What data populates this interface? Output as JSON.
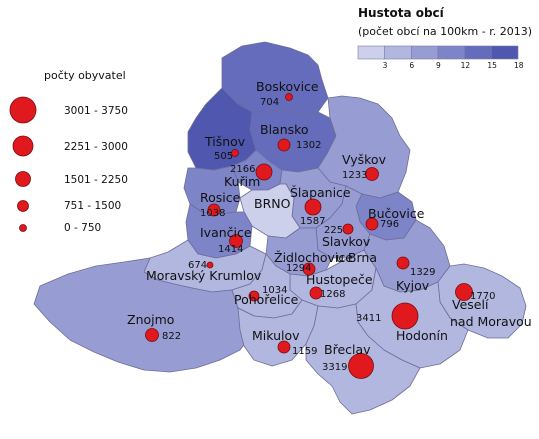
{
  "scale": {
    "title": "Hustota obcí",
    "subtitle": "(počet obcí na 100km - r. 2013)",
    "ticks": [
      "3",
      "6",
      "9",
      "12",
      "15",
      "18"
    ],
    "colors": [
      "#cdd0ea",
      "#b2b7df",
      "#979dd3",
      "#7d84c7",
      "#646cbb",
      "#4f58ae"
    ]
  },
  "legend": {
    "title": "počty obyvatel",
    "classes": [
      "3001 - 3750",
      "2251 - 3000",
      "1501 - 2250",
      "751 - 1500",
      "0 - 750"
    ]
  },
  "districts": [
    {
      "name": "Boskovice",
      "value": "704",
      "level": 4
    },
    {
      "name": "Blansko",
      "value": "1302",
      "level": 4
    },
    {
      "name": "Tišnov",
      "value": "505",
      "level": 5
    },
    {
      "name": "Vyškov",
      "value": "1233",
      "level": 2
    },
    {
      "name": "Kuřim",
      "value": "2166",
      "level": 3
    },
    {
      "name": "Šlapanice",
      "value": "1587",
      "level": 2
    },
    {
      "name": "Rosice",
      "value": "1038",
      "level": 3
    },
    {
      "name": "BRNO",
      "value": "",
      "level": 0
    },
    {
      "name": "Bučovice",
      "value": "796",
      "level": 3
    },
    {
      "name": "Ivančice",
      "value": "1414",
      "level": 3
    },
    {
      "name": "Slavkov u Brna",
      "value": "225",
      "level": 2
    },
    {
      "name": "Židlochovice",
      "value": "1294",
      "level": 2
    },
    {
      "name": "Moravský Krumlov",
      "value": "674",
      "level": 1
    },
    {
      "name": "Hustopeče",
      "value": "1268",
      "level": 1
    },
    {
      "name": "Kyjov",
      "value": "1329",
      "level": 2
    },
    {
      "name": "Pohořelice",
      "value": "1034",
      "level": 1
    },
    {
      "name": "Veselí nad Moravou",
      "value": "1770",
      "level": 1
    },
    {
      "name": "Znojmo",
      "value": "822",
      "level": 2
    },
    {
      "name": "Hodonín",
      "value": "3411",
      "level": 1
    },
    {
      "name": "Mikulov",
      "value": "1159",
      "level": 1
    },
    {
      "name": "Břeclav",
      "value": "3319",
      "level": 1
    }
  ]
}
